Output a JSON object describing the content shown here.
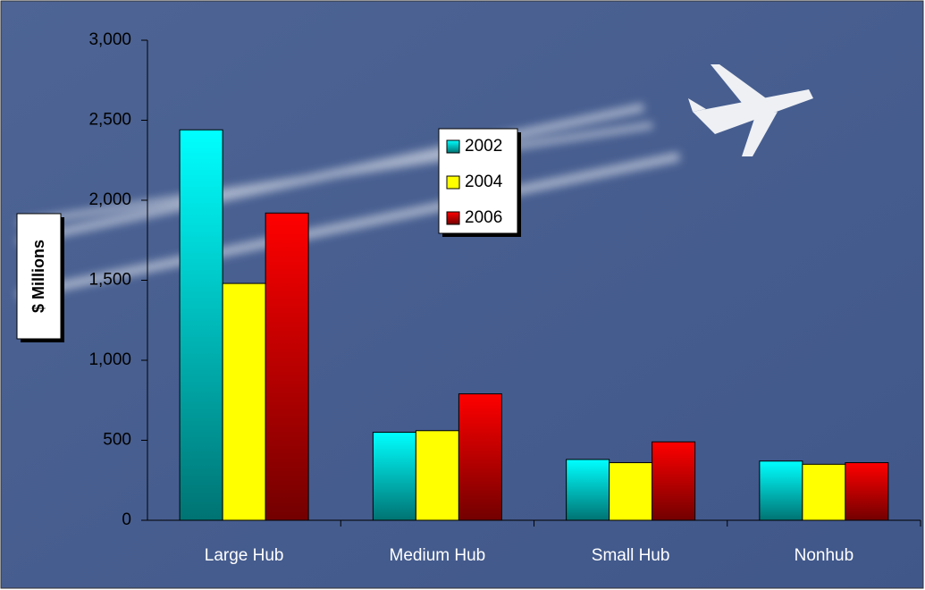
{
  "chart_data": {
    "type": "bar",
    "y_label": "$ Millions",
    "categories": [
      "Large Hub",
      "Medium Hub",
      "Small Hub",
      "Nonhub"
    ],
    "series": [
      {
        "name": "2002",
        "color": "#00ffff",
        "values": [
          2440,
          550,
          380,
          370
        ]
      },
      {
        "name": "2004",
        "color": "#ffff00",
        "values": [
          1480,
          560,
          360,
          350
        ]
      },
      {
        "name": "2006",
        "color": "#ff0000",
        "values": [
          1920,
          790,
          490,
          360
        ]
      }
    ],
    "ylim": [
      0,
      3000
    ],
    "yticks": [
      0,
      500,
      {
        "value": 1000,
        "label": "1,000"
      },
      {
        "value": 1500,
        "label": "1,500"
      },
      {
        "value": 2000,
        "label": "2,000"
      },
      {
        "value": 2500,
        "label": "2,500"
      },
      {
        "value": 3000,
        "label": "3,000"
      }
    ]
  }
}
